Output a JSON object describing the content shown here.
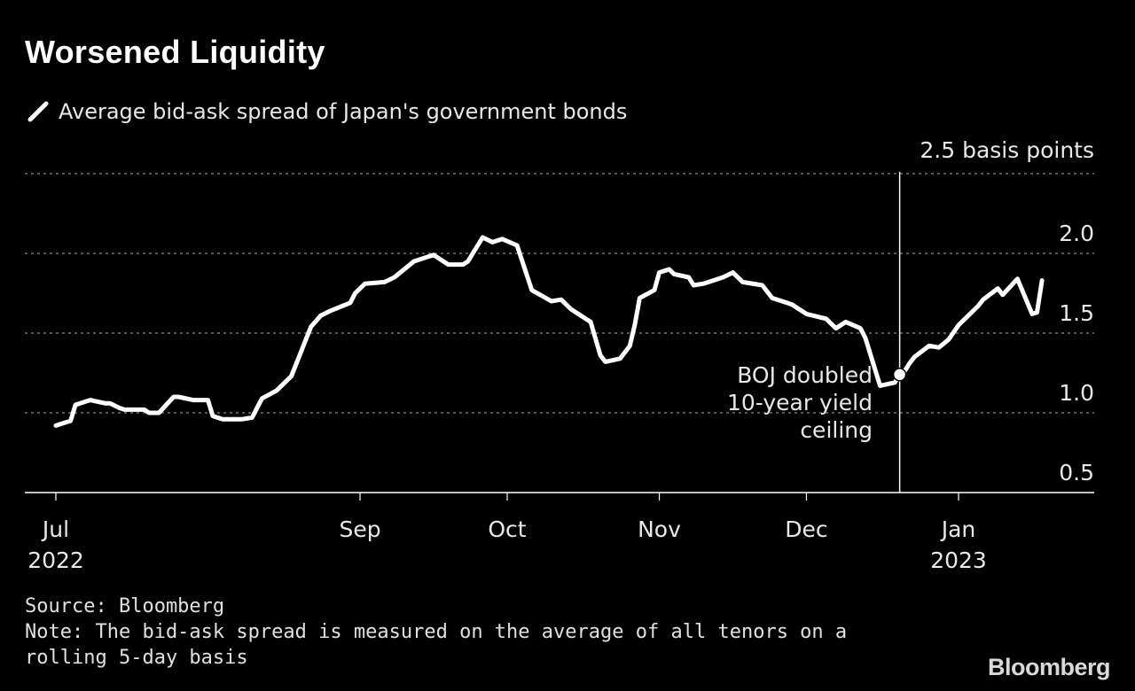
{
  "title": "Worsened Liquidity",
  "chart_data": {
    "type": "line",
    "title": "Worsened Liquidity",
    "unit_label": "2.5 basis points",
    "xlabel": "",
    "ylabel": "",
    "ylim": [
      0.5,
      2.5
    ],
    "yticks": [
      {
        "value": 1.0,
        "label": "1.0"
      },
      {
        "value": 1.5,
        "label": "1.5"
      },
      {
        "value": 2.0,
        "label": "2.0"
      },
      {
        "value": 0.5,
        "label": "0.5"
      }
    ],
    "xlim": [
      "2022-07-01",
      "2023-01-31"
    ],
    "xticks": [
      {
        "date": "2022-07-01",
        "label": "Jul",
        "sublabel": "2022"
      },
      {
        "date": "2022-09-01",
        "label": "Sep",
        "sublabel": ""
      },
      {
        "date": "2022-10-01",
        "label": "Oct",
        "sublabel": ""
      },
      {
        "date": "2022-11-01",
        "label": "Nov",
        "sublabel": ""
      },
      {
        "date": "2022-12-01",
        "label": "Dec",
        "sublabel": ""
      },
      {
        "date": "2023-01-01",
        "label": "Jan",
        "sublabel": "2023"
      }
    ],
    "grid": true,
    "legend": "top-left",
    "series": [
      {
        "name": "Average bid-ask spread of Japan's government bonds",
        "color": "#ffffff",
        "points": [
          [
            "2022-07-01",
            0.92
          ],
          [
            "2022-07-04",
            0.95
          ],
          [
            "2022-07-05",
            1.05
          ],
          [
            "2022-07-07",
            1.07
          ],
          [
            "2022-07-08",
            1.08
          ],
          [
            "2022-07-11",
            1.06
          ],
          [
            "2022-07-12",
            1.06
          ],
          [
            "2022-07-14",
            1.03
          ],
          [
            "2022-07-15",
            1.02
          ],
          [
            "2022-07-19",
            1.02
          ],
          [
            "2022-07-20",
            1.0
          ],
          [
            "2022-07-22",
            1.0
          ],
          [
            "2022-07-25",
            1.1
          ],
          [
            "2022-07-26",
            1.1
          ],
          [
            "2022-07-29",
            1.08
          ],
          [
            "2022-08-01",
            1.08
          ],
          [
            "2022-08-02",
            0.98
          ],
          [
            "2022-08-04",
            0.96
          ],
          [
            "2022-08-08",
            0.96
          ],
          [
            "2022-08-10",
            0.97
          ],
          [
            "2022-08-12",
            1.09
          ],
          [
            "2022-08-15",
            1.14
          ],
          [
            "2022-08-18",
            1.23
          ],
          [
            "2022-08-22",
            1.54
          ],
          [
            "2022-08-24",
            1.61
          ],
          [
            "2022-08-26",
            1.64
          ],
          [
            "2022-08-30",
            1.69
          ],
          [
            "2022-08-31",
            1.75
          ],
          [
            "2022-09-02",
            1.81
          ],
          [
            "2022-09-06",
            1.82
          ],
          [
            "2022-09-08",
            1.85
          ],
          [
            "2022-09-12",
            1.95
          ],
          [
            "2022-09-14",
            1.97
          ],
          [
            "2022-09-16",
            1.99
          ],
          [
            "2022-09-19",
            1.93
          ],
          [
            "2022-09-22",
            1.93
          ],
          [
            "2022-09-23",
            1.95
          ],
          [
            "2022-09-26",
            2.1
          ],
          [
            "2022-09-28",
            2.07
          ],
          [
            "2022-09-30",
            2.09
          ],
          [
            "2022-10-03",
            2.05
          ],
          [
            "2022-10-06",
            1.77
          ],
          [
            "2022-10-10",
            1.7
          ],
          [
            "2022-10-12",
            1.71
          ],
          [
            "2022-10-14",
            1.65
          ],
          [
            "2022-10-18",
            1.57
          ],
          [
            "2022-10-20",
            1.36
          ],
          [
            "2022-10-21",
            1.32
          ],
          [
            "2022-10-24",
            1.34
          ],
          [
            "2022-10-26",
            1.42
          ],
          [
            "2022-10-27",
            1.55
          ],
          [
            "2022-10-28",
            1.72
          ],
          [
            "2022-10-31",
            1.77
          ],
          [
            "2022-11-01",
            1.88
          ],
          [
            "2022-11-03",
            1.9
          ],
          [
            "2022-11-04",
            1.87
          ],
          [
            "2022-11-07",
            1.85
          ],
          [
            "2022-11-08",
            1.8
          ],
          [
            "2022-11-10",
            1.81
          ],
          [
            "2022-11-14",
            1.85
          ],
          [
            "2022-11-16",
            1.88
          ],
          [
            "2022-11-18",
            1.82
          ],
          [
            "2022-11-22",
            1.8
          ],
          [
            "2022-11-24",
            1.72
          ],
          [
            "2022-11-28",
            1.68
          ],
          [
            "2022-12-01",
            1.62
          ],
          [
            "2022-12-05",
            1.59
          ],
          [
            "2022-12-07",
            1.53
          ],
          [
            "2022-12-09",
            1.57
          ],
          [
            "2022-12-12",
            1.53
          ],
          [
            "2022-12-13",
            1.47
          ],
          [
            "2022-12-16",
            1.17
          ],
          [
            "2022-12-19",
            1.19
          ],
          [
            "2022-12-20",
            1.24
          ],
          [
            "2022-12-21",
            1.26
          ],
          [
            "2022-12-22",
            1.31
          ],
          [
            "2022-12-23",
            1.35
          ],
          [
            "2022-12-26",
            1.42
          ],
          [
            "2022-12-28",
            1.41
          ],
          [
            "2022-12-30",
            1.46
          ],
          [
            "2023-01-01",
            1.55
          ],
          [
            "2023-01-03",
            1.61
          ],
          [
            "2023-01-05",
            1.67
          ],
          [
            "2023-01-06",
            1.71
          ],
          [
            "2023-01-09",
            1.78
          ],
          [
            "2023-01-10",
            1.74
          ],
          [
            "2023-01-13",
            1.84
          ],
          [
            "2023-01-16",
            1.62
          ],
          [
            "2023-01-17",
            1.63
          ],
          [
            "2023-01-18",
            1.83
          ]
        ]
      }
    ],
    "marker": {
      "date": "2022-12-20",
      "value": 1.24
    },
    "event_line": {
      "date": "2022-12-20"
    },
    "annotation": {
      "lines": [
        "BOJ doubled",
        "10-year yield",
        "ceiling"
      ]
    }
  },
  "footer": {
    "source": "Source: Bloomberg",
    "note": "Note: The bid-ask spread is measured on the average of all tenors on a rolling 5-day basis"
  },
  "brand": "Bloomberg"
}
